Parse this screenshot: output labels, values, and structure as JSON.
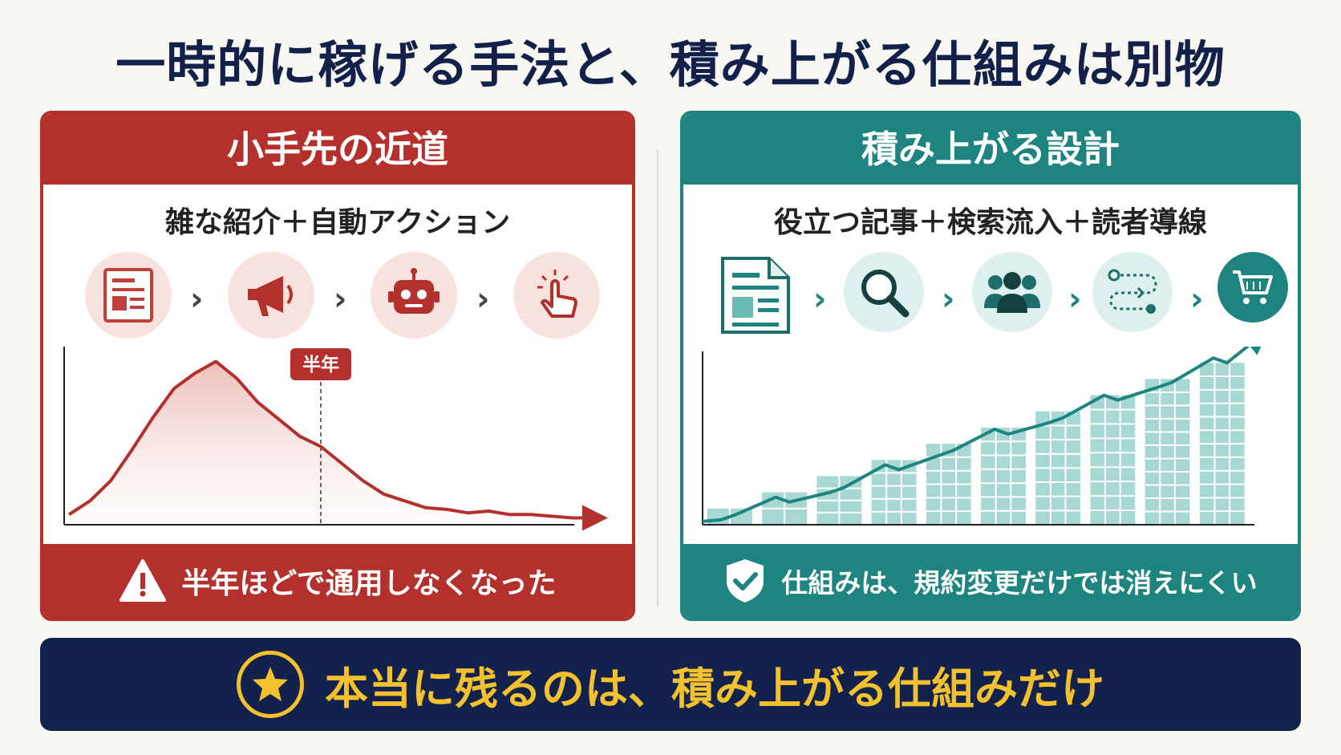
{
  "title": "一時的に稼げる手法と、積み上がる仕組みは別物",
  "left": {
    "heading": "小手先の近道",
    "formula": "雑な紹介＋自動アクション",
    "steps": [
      "document-icon",
      "megaphone-icon",
      "robot-icon",
      "click-pointer-icon"
    ],
    "marker_label": "半年",
    "footer": "半年ほどで通用しなくなった",
    "footer_icon": "warning-icon",
    "color": "#b3302c"
  },
  "right": {
    "heading": "積み上がる設計",
    "formula": "役立つ記事＋検索流入＋読者導線",
    "steps": [
      "article-icon",
      "search-icon",
      "users-icon",
      "route-icon",
      "cart-icon"
    ],
    "footer": "仕組みは、規約変更だけでは消えにくい",
    "footer_icon": "shield-check-icon",
    "color": "#1d8480"
  },
  "bottom": {
    "message": "本当に残るのは、積み上がる仕組みだけ",
    "icon": "star-icon",
    "color": "#f3c12e"
  },
  "chart_data": [
    {
      "type": "line",
      "values": [
        6,
        14,
        26,
        44,
        63,
        80,
        89,
        96,
        86,
        72,
        62,
        52,
        46,
        36,
        26,
        18,
        14,
        10,
        9,
        7,
        8,
        6,
        6,
        5,
        4
      ],
      "marker_index": 12,
      "marker_label": "半年",
      "ylim": [
        0,
        100
      ]
    },
    {
      "type": "bar",
      "values": [
        1,
        2,
        3,
        4,
        5,
        6,
        7,
        8,
        9,
        10
      ],
      "line_values": [
        0.6,
        1.4,
        2.3,
        3.4,
        4.6,
        5.6,
        6.6,
        7.7,
        8.8,
        10.0
      ],
      "ylim": [
        0,
        11
      ]
    }
  ]
}
